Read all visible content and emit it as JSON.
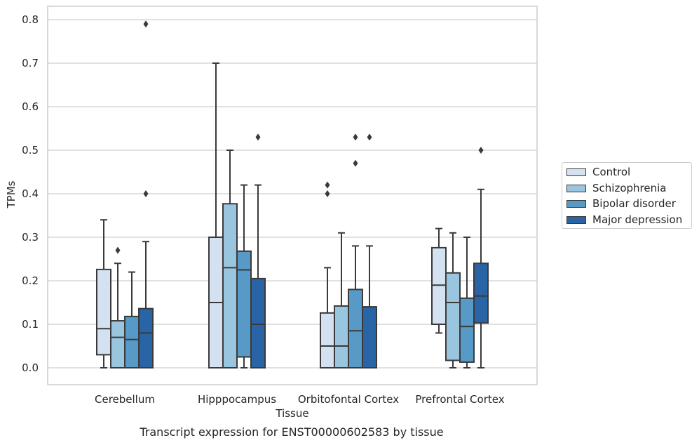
{
  "caption": "Transcript expression for ENST00000602583 by tissue",
  "chart_data": {
    "type": "boxplot",
    "xlabel": "Tissue",
    "ylabel": "TPMs",
    "ylim": [
      -0.04,
      0.83
    ],
    "yticks": [
      "0.0",
      "0.1",
      "0.2",
      "0.3",
      "0.4",
      "0.5",
      "0.6",
      "0.7",
      "0.8"
    ],
    "grid": "horizontal",
    "legend_position": "right",
    "categories": [
      "Cerebellum",
      "Hipppocampus",
      "Orbitofontal Cortex",
      "Prefrontal Cortex"
    ],
    "series": [
      {
        "name": "Control",
        "color": "#d3e1f0",
        "boxes": [
          {
            "q1": 0.03,
            "median": 0.09,
            "q3": 0.226,
            "whislo": 0.0,
            "whishi": 0.34,
            "fliers": []
          },
          {
            "q1": 0.0,
            "median": 0.15,
            "q3": 0.3,
            "whislo": 0.0,
            "whishi": 0.7,
            "fliers": []
          },
          {
            "q1": 0.0,
            "median": 0.05,
            "q3": 0.126,
            "whislo": 0.0,
            "whishi": 0.23,
            "fliers": [
              0.4,
              0.42
            ]
          },
          {
            "q1": 0.1,
            "median": 0.19,
            "q3": 0.276,
            "whislo": 0.08,
            "whishi": 0.32,
            "fliers": []
          }
        ]
      },
      {
        "name": "Schizophrenia",
        "color": "#9ac5de",
        "boxes": [
          {
            "q1": 0.0,
            "median": 0.07,
            "q3": 0.108,
            "whislo": 0.0,
            "whishi": 0.24,
            "fliers": [
              0.27
            ]
          },
          {
            "q1": 0.0,
            "median": 0.23,
            "q3": 0.377,
            "whislo": 0.0,
            "whishi": 0.5,
            "fliers": []
          },
          {
            "q1": 0.0,
            "median": 0.05,
            "q3": 0.142,
            "whislo": 0.0,
            "whishi": 0.31,
            "fliers": []
          },
          {
            "q1": 0.017,
            "median": 0.15,
            "q3": 0.218,
            "whislo": 0.0,
            "whishi": 0.31,
            "fliers": []
          }
        ]
      },
      {
        "name": "Bipolar disorder",
        "color": "#5799c7",
        "boxes": [
          {
            "q1": 0.0,
            "median": 0.065,
            "q3": 0.118,
            "whislo": 0.0,
            "whishi": 0.22,
            "fliers": []
          },
          {
            "q1": 0.025,
            "median": 0.225,
            "q3": 0.268,
            "whislo": 0.0,
            "whishi": 0.42,
            "fliers": []
          },
          {
            "q1": 0.0,
            "median": 0.085,
            "q3": 0.18,
            "whislo": 0.0,
            "whishi": 0.28,
            "fliers": [
              0.47,
              0.53
            ]
          },
          {
            "q1": 0.013,
            "median": 0.095,
            "q3": 0.16,
            "whislo": 0.0,
            "whishi": 0.3,
            "fliers": []
          }
        ]
      },
      {
        "name": "Major depression",
        "color": "#2964a6",
        "boxes": [
          {
            "q1": 0.0,
            "median": 0.08,
            "q3": 0.136,
            "whislo": 0.0,
            "whishi": 0.29,
            "fliers": [
              0.4,
              0.79
            ]
          },
          {
            "q1": 0.0,
            "median": 0.1,
            "q3": 0.205,
            "whislo": 0.0,
            "whishi": 0.42,
            "fliers": [
              0.53
            ]
          },
          {
            "q1": 0.0,
            "median": 0.14,
            "q3": 0.14,
            "whislo": 0.0,
            "whishi": 0.28,
            "fliers": [
              0.53
            ]
          },
          {
            "q1": 0.103,
            "median": 0.165,
            "q3": 0.24,
            "whislo": 0.0,
            "whishi": 0.41,
            "fliers": [
              0.5
            ]
          }
        ]
      }
    ]
  }
}
